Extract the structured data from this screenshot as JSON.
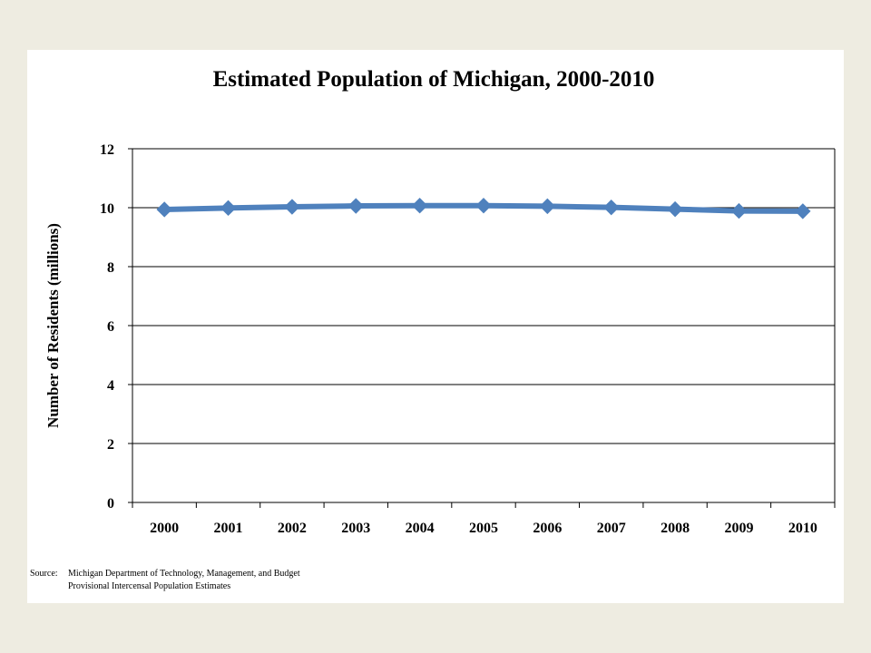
{
  "chart_data": {
    "type": "line",
    "title": "Estimated Population of Michigan, 2000-2010",
    "xlabel": "",
    "ylabel": "Number of Residents (millions)",
    "categories": [
      "2000",
      "2001",
      "2002",
      "2003",
      "2004",
      "2005",
      "2006",
      "2007",
      "2008",
      "2009",
      "2010"
    ],
    "series": [
      {
        "values": [
          9.94,
          9.99,
          10.03,
          10.06,
          10.07,
          10.07,
          10.05,
          10.01,
          9.95,
          9.89,
          9.88
        ]
      }
    ],
    "ylim": [
      0,
      12
    ],
    "yticks": [
      "0",
      "2",
      "4",
      "6",
      "8",
      "10",
      "12"
    ],
    "grid": true,
    "legend": "none",
    "line_color": "#4f81bd"
  },
  "source": {
    "prefix": "Source:",
    "line1": "Michigan Department of Technology, Management, and Budget",
    "line2": "Provisional Intercensal Population Estimates"
  }
}
